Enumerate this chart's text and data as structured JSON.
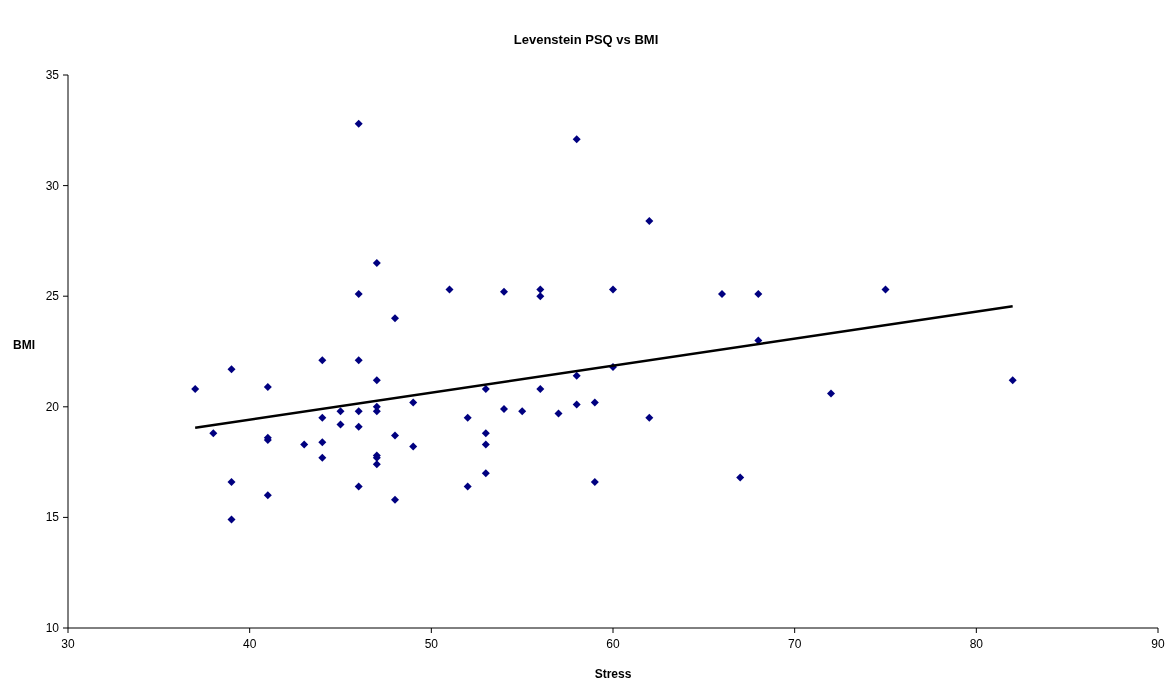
{
  "chart_data": {
    "type": "scatter",
    "title": "Levenstein PSQ vs BMI",
    "xlabel": "Stress",
    "ylabel": "BMI",
    "xlim": [
      30,
      90
    ],
    "xticks": [
      30,
      40,
      50,
      60,
      70,
      80,
      90
    ],
    "ylim": [
      10,
      35
    ],
    "yticks": [
      10,
      15,
      20,
      25,
      30,
      35
    ],
    "grid": false,
    "marker": "diamond",
    "series": [
      {
        "color": "#000080",
        "x": [
          37,
          38,
          39,
          39,
          39,
          41,
          41,
          41,
          41,
          43,
          44,
          44,
          44,
          44,
          45,
          45,
          46,
          46,
          46,
          46,
          46,
          46,
          47,
          47,
          47,
          47,
          47,
          47,
          47,
          48,
          48,
          48,
          49,
          49,
          51,
          52,
          52,
          53,
          53,
          53,
          53,
          54,
          54,
          55,
          56,
          56,
          56,
          57,
          58,
          58,
          58,
          59,
          59,
          60,
          60,
          62,
          62,
          66,
          67,
          68,
          68,
          72,
          75,
          82
        ],
        "values": [
          20.8,
          18.8,
          21.7,
          16.6,
          14.9,
          20.9,
          18.6,
          18.5,
          16.0,
          18.3,
          22.1,
          19.5,
          18.4,
          17.7,
          19.8,
          19.2,
          32.8,
          25.1,
          22.1,
          19.8,
          19.1,
          16.4,
          26.5,
          21.2,
          20.0,
          19.8,
          17.8,
          17.7,
          17.4,
          24.0,
          18.7,
          15.8,
          20.2,
          18.2,
          25.3,
          19.5,
          16.4,
          20.8,
          18.8,
          18.3,
          17.0,
          25.2,
          19.9,
          19.8,
          25.3,
          25.0,
          20.8,
          19.7,
          32.1,
          21.4,
          20.1,
          20.2,
          16.6,
          25.3,
          21.8,
          28.4,
          19.5,
          25.1,
          16.8,
          25.1,
          23.0,
          20.6,
          25.3,
          21.2
        ]
      },
      {
        "type": "line",
        "color": "#000000",
        "marker": "none",
        "line_style": "solid",
        "x": [
          37,
          82
        ],
        "values": [
          19.05,
          24.55
        ]
      }
    ]
  }
}
